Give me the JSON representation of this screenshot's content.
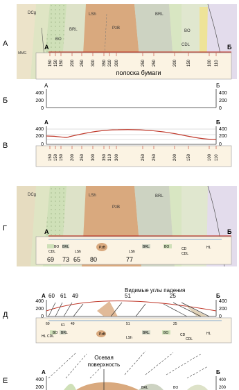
{
  "steps": [
    {
      "letter": "А"
    },
    {
      "letter": "Б"
    },
    {
      "letter": "В"
    },
    {
      "letter": "Г"
    },
    {
      "letter": "Д"
    },
    {
      "letter": "Е"
    }
  ],
  "endpoints": {
    "start": "А",
    "end": "Б"
  },
  "strip_label": "полоска бумаги",
  "map_units": {
    "dcg": "DCg",
    "cdl": "CDL",
    "bo": "BO",
    "brl": "BRL",
    "lsh": "LSh",
    "pzb": "PzB",
    "mmg": "MMG",
    "hl": "HL",
    "c": "c",
    "cd": "CD"
  },
  "elevation_ticks": [
    "400",
    "200",
    "0"
  ],
  "strip_ticks": [
    "150",
    "150",
    "150",
    "200",
    "250",
    "300",
    "350",
    "310",
    "300",
    "250",
    "250",
    "200",
    "150",
    "100",
    "110"
  ],
  "dip_values_g": [
    "69",
    "73",
    "65",
    "80",
    "77"
  ],
  "dip_values_d": [
    "60",
    "61",
    "49",
    "51",
    "25"
  ],
  "dip_caption": "Видимые углы падения",
  "axial_caption_line1": "Осевая",
  "axial_caption_line2": "поверхность",
  "colors": {
    "map_bg": "#e6dcc0",
    "pzb": "#d9a97e",
    "bo": "#cfe0b8",
    "brl": "#cdd3c2",
    "profile_line": "#c0392b",
    "strip": "#fbf3e3"
  }
}
